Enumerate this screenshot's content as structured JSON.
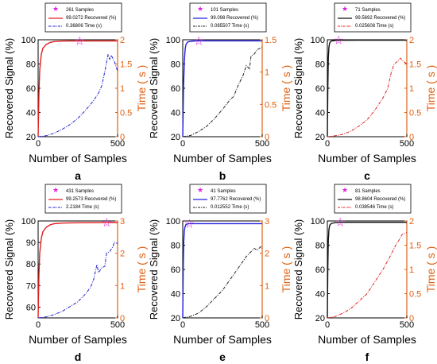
{
  "chart_data": [
    {
      "type": "line",
      "panel_label": "a",
      "xlabel": "Number of Samples",
      "ylabel": "Recovered Signal (%)",
      "y2label": "Time ( s )",
      "xlim": [
        0,
        500
      ],
      "ylim": [
        20,
        100
      ],
      "y2lim": [
        0,
        2
      ],
      "xticks": [
        0,
        500
      ],
      "yticks": [
        20,
        40,
        60,
        80,
        100
      ],
      "y2ticks": [
        0,
        0.5,
        1,
        1.5,
        2
      ],
      "colors": {
        "recovered": "#e02020",
        "time": "#2020d0",
        "star": "#e020e0",
        "y2axis": "#e06010"
      },
      "legend": [
        "261 Samples",
        "99.0272 Recovered (%)",
        "0.36806 Time (s)"
      ],
      "star": {
        "x": 261,
        "y": 99.0272
      },
      "recovered": {
        "x": [
          0,
          5,
          10,
          20,
          30,
          50,
          75,
          100,
          150,
          200,
          300,
          400,
          500
        ],
        "y": [
          20,
          55,
          75,
          88,
          93,
          96,
          97.8,
          98.5,
          98.9,
          99,
          99,
          99.03,
          99.03
        ]
      },
      "time": {
        "x": [
          0,
          50,
          100,
          150,
          200,
          250,
          300,
          350,
          380,
          400,
          420,
          440,
          450,
          460,
          480,
          500
        ],
        "y": [
          0,
          0.02,
          0.07,
          0.15,
          0.25,
          0.38,
          0.55,
          0.75,
          0.9,
          1.05,
          1.35,
          1.7,
          1.6,
          1.68,
          1.55,
          1.35
        ]
      }
    },
    {
      "type": "line",
      "panel_label": "b",
      "xlabel": "Number of Samples",
      "ylabel": "Recovered Signal (%)",
      "y2label": "Time ( s )",
      "xlim": [
        0,
        500
      ],
      "ylim": [
        20,
        100
      ],
      "y2lim": [
        0,
        1.5
      ],
      "xticks": [
        0,
        500
      ],
      "yticks": [
        20,
        40,
        60,
        80,
        100
      ],
      "y2ticks": [
        0,
        0.5,
        1,
        1.5
      ],
      "colors": {
        "recovered": "#2020e0",
        "time": "#202020",
        "star": "#e020e0",
        "y2axis": "#e06010"
      },
      "legend": [
        "101 Samples",
        "99.098 Recovered (%)",
        "0.085507 Time (s)"
      ],
      "star": {
        "x": 101,
        "y": 99.098
      },
      "recovered": {
        "x": [
          0,
          5,
          10,
          15,
          20,
          30,
          50,
          75,
          100,
          200,
          500
        ],
        "y": [
          20,
          62,
          82,
          92,
          96,
          98,
          98.7,
          99,
          99.1,
          99.1,
          99.1
        ]
      },
      "time": {
        "x": [
          0,
          50,
          100,
          150,
          200,
          250,
          300,
          320,
          350,
          380,
          400,
          420,
          430,
          450,
          470,
          500
        ],
        "y": [
          0,
          0.02,
          0.08,
          0.16,
          0.28,
          0.42,
          0.58,
          0.62,
          0.8,
          0.95,
          1.1,
          1.05,
          1.25,
          1.28,
          1.35,
          1.38
        ]
      }
    },
    {
      "type": "line",
      "panel_label": "c",
      "xlabel": "Number of Samples",
      "ylabel": "Recovered Signal (%)",
      "y2label": "Time ( s )",
      "xlim": [
        0,
        500
      ],
      "ylim": [
        20,
        100
      ],
      "y2lim": [
        0,
        2
      ],
      "xticks": [
        0,
        500
      ],
      "yticks": [
        20,
        40,
        60,
        80,
        100
      ],
      "y2ticks": [
        0,
        0.5,
        1,
        1.5,
        2
      ],
      "colors": {
        "recovered": "#101010",
        "time": "#e02020",
        "star": "#e020e0",
        "y2axis": "#e06010"
      },
      "legend": [
        "71 Samples",
        "99.5692 Recovered (%)",
        "0.025608 Time (s)"
      ],
      "star": {
        "x": 71,
        "y": 99.5692
      },
      "recovered": {
        "x": [
          0,
          3,
          6,
          10,
          15,
          25,
          50,
          71,
          200,
          500
        ],
        "y": [
          20,
          60,
          85,
          94,
          97.5,
          99,
          99.4,
          99.57,
          99.6,
          99.6
        ]
      },
      "time": {
        "x": [
          0,
          50,
          100,
          150,
          200,
          250,
          300,
          350,
          380,
          400,
          420,
          440,
          460,
          480,
          500
        ],
        "y": [
          0,
          0.02,
          0.05,
          0.12,
          0.22,
          0.35,
          0.55,
          0.8,
          1.0,
          1.3,
          1.5,
          1.55,
          1.62,
          1.55,
          1.5
        ]
      }
    },
    {
      "type": "line",
      "panel_label": "d",
      "xlabel": "Number of Samples",
      "ylabel": "Recovered Signal (%)",
      "y2label": "Time ( s )",
      "xlim": [
        0,
        500
      ],
      "ylim": [
        55,
        100
      ],
      "y2lim": [
        0,
        3
      ],
      "xticks": [
        0,
        500
      ],
      "yticks": [
        60,
        70,
        80,
        90,
        100
      ],
      "y2ticks": [
        0,
        1,
        2,
        3
      ],
      "colors": {
        "recovered": "#e02020",
        "time": "#2020d0",
        "star": "#e020e0",
        "y2axis": "#e06010"
      },
      "legend": [
        "431 Samples",
        "99.2573 Recovered (%)",
        "2.2184 Time (s)"
      ],
      "star": {
        "x": 431,
        "y": 99.2573
      },
      "recovered": {
        "x": [
          0,
          5,
          10,
          20,
          30,
          50,
          75,
          100,
          150,
          200,
          300,
          431,
          500
        ],
        "y": [
          55,
          75,
          85,
          92,
          95,
          97,
          98.2,
          98.7,
          99,
          99.1,
          99.2,
          99.26,
          99.26
        ]
      },
      "time": {
        "x": [
          0,
          50,
          100,
          150,
          200,
          250,
          300,
          330,
          350,
          370,
          380,
          400,
          420,
          430,
          450,
          470,
          480,
          500
        ],
        "y": [
          0,
          0.03,
          0.1,
          0.2,
          0.35,
          0.5,
          0.75,
          0.95,
          1.2,
          1.65,
          1.4,
          1.55,
          1.6,
          2.0,
          2.05,
          2.2,
          2.35,
          2.3
        ]
      }
    },
    {
      "type": "line",
      "panel_label": "e",
      "xlabel": "Number of Samples",
      "ylabel": "Recovered Signal (%)",
      "y2label": "Time ( s )",
      "xlim": [
        0,
        500
      ],
      "ylim": [
        20,
        100
      ],
      "y2lim": [
        0,
        3
      ],
      "xticks": [
        0,
        500
      ],
      "yticks": [
        20,
        40,
        60,
        80,
        100
      ],
      "y2ticks": [
        0,
        1,
        2,
        3
      ],
      "colors": {
        "recovered": "#2020e0",
        "time": "#202020",
        "star": "#e020e0",
        "y2axis": "#e06010"
      },
      "legend": [
        "41 Samples",
        "97.7762 Recovered (%)",
        "0.012552 Time (s)"
      ],
      "star": {
        "x": 41,
        "y": 97.7762
      },
      "recovered": {
        "x": [
          0,
          3,
          6,
          10,
          15,
          20,
          30,
          41,
          100,
          500
        ],
        "y": [
          20,
          60,
          82,
          92,
          95.5,
          97,
          97.6,
          97.78,
          97.78,
          97.78
        ]
      },
      "time": {
        "x": [
          0,
          50,
          100,
          150,
          200,
          250,
          300,
          350,
          400,
          430,
          450,
          470,
          490,
          500
        ],
        "y": [
          0,
          0.05,
          0.15,
          0.35,
          0.6,
          0.85,
          1.2,
          1.55,
          1.9,
          2.05,
          2.15,
          2.1,
          2.2,
          2.15
        ]
      }
    },
    {
      "type": "line",
      "panel_label": "f",
      "xlabel": "Number of Samples",
      "ylabel": "Recovered Signal (%)",
      "y2label": "Time ( s )",
      "xlim": [
        0,
        500
      ],
      "ylim": [
        20,
        100
      ],
      "y2lim": [
        0,
        2
      ],
      "xticks": [
        0,
        500
      ],
      "yticks": [
        20,
        40,
        60,
        80,
        100
      ],
      "y2ticks": [
        0,
        0.5,
        1,
        1.5,
        2
      ],
      "colors": {
        "recovered": "#101010",
        "time": "#e02020",
        "star": "#e020e0",
        "y2axis": "#e06010"
      },
      "legend": [
        "81 Samples",
        "98.8604 Recovered (%)",
        "0.038546 Time (s)"
      ],
      "star": {
        "x": 81,
        "y": 98.8604
      },
      "recovered": {
        "x": [
          0,
          3,
          6,
          10,
          15,
          25,
          50,
          81,
          200,
          500
        ],
        "y": [
          20,
          62,
          84,
          93,
          96.5,
          98,
          98.6,
          98.86,
          98.9,
          98.9
        ]
      },
      "time": {
        "x": [
          0,
          50,
          100,
          150,
          200,
          250,
          300,
          350,
          400,
          430,
          450,
          470,
          490,
          500
        ],
        "y": [
          0,
          0.03,
          0.1,
          0.2,
          0.35,
          0.5,
          0.75,
          1.0,
          1.3,
          1.5,
          1.6,
          1.72,
          1.75,
          1.76
        ]
      }
    }
  ]
}
